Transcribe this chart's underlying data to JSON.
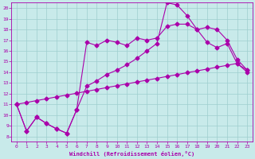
{
  "xlabel": "Windchill (Refroidissement éolien,°C)",
  "bg_color": "#c8eaea",
  "grid_color": "#9ecece",
  "line_color": "#aa00aa",
  "xlim": [
    -0.5,
    23.5
  ],
  "ylim": [
    7.5,
    20.5
  ],
  "xticks": [
    0,
    1,
    2,
    3,
    4,
    5,
    6,
    7,
    8,
    9,
    10,
    11,
    12,
    13,
    14,
    15,
    16,
    17,
    18,
    19,
    20,
    21,
    22,
    23
  ],
  "yticks": [
    8,
    9,
    10,
    11,
    12,
    13,
    14,
    15,
    16,
    17,
    18,
    19,
    20
  ],
  "curve1_x": [
    0,
    1,
    2,
    3,
    4,
    5,
    6,
    7,
    8,
    9,
    10,
    11,
    12,
    13,
    14,
    15,
    16,
    17,
    18,
    19,
    20,
    21,
    22,
    23
  ],
  "curve1_y": [
    11.0,
    8.5,
    9.8,
    9.2,
    8.7,
    8.3,
    10.5,
    12.7,
    13.2,
    13.8,
    14.2,
    14.7,
    15.3,
    16.0,
    16.7,
    20.5,
    20.3,
    19.3,
    18.0,
    16.8,
    16.3,
    16.7,
    14.8,
    14.2
  ],
  "curve2_x": [
    0,
    1,
    2,
    3,
    4,
    5,
    6,
    7,
    8,
    9,
    10,
    11,
    12,
    13,
    14,
    15,
    16,
    17,
    18,
    19,
    20,
    21,
    22,
    23
  ],
  "curve2_y": [
    11.0,
    8.5,
    9.8,
    9.2,
    8.7,
    8.3,
    10.5,
    16.8,
    16.5,
    17.0,
    16.8,
    16.5,
    17.2,
    17.0,
    17.2,
    18.3,
    18.5,
    18.5,
    18.0,
    18.2,
    18.0,
    17.0,
    15.2,
    14.2
  ],
  "curve3_x": [
    0,
    1,
    2,
    3,
    4,
    5,
    6,
    7,
    8,
    9,
    10,
    11,
    12,
    13,
    14,
    15,
    16,
    17,
    18,
    19,
    20,
    21,
    22,
    23
  ],
  "curve3_y": [
    11.0,
    11.17,
    11.35,
    11.52,
    11.7,
    11.87,
    12.04,
    12.22,
    12.39,
    12.57,
    12.74,
    12.91,
    13.09,
    13.26,
    13.43,
    13.61,
    13.78,
    13.96,
    14.13,
    14.3,
    14.48,
    14.65,
    14.83,
    14.0
  ]
}
